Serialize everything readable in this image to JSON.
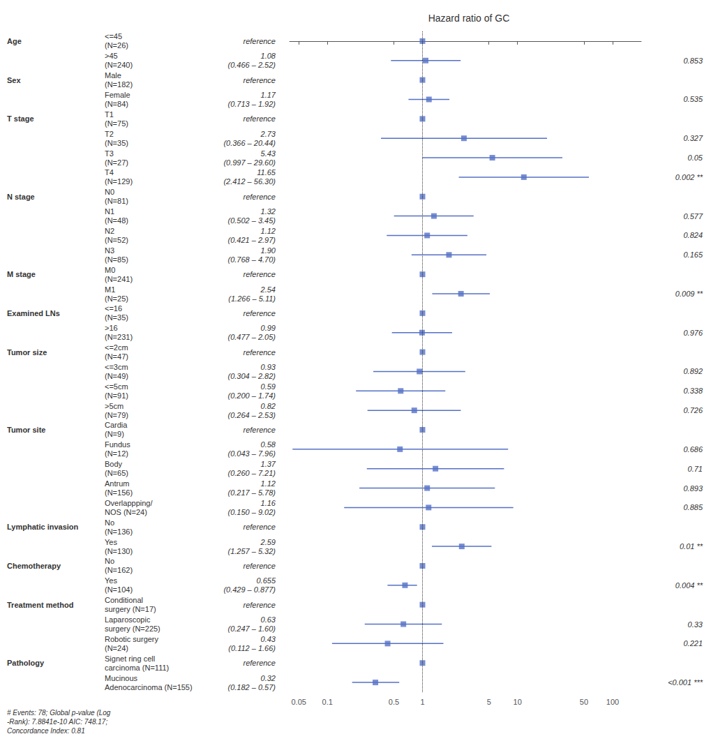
{
  "chart_data": {
    "type": "forest",
    "title": "Hazard ratio of GC",
    "annotations": [
      "# Events: 78; Global p-value (Log\n-Rank): 7.8841e-10 AIC: 748.17;\nConcordance Index: 0.81"
    ],
    "groups": [
      "Age",
      null,
      "Sex",
      null,
      "T stage",
      null,
      null,
      null,
      "N stage",
      null,
      null,
      null,
      "M stage",
      null,
      "Examined LNs",
      null,
      "Tumor size",
      null,
      null,
      null,
      "Tumor site",
      null,
      null,
      null,
      null,
      "Lymphatic invasion",
      null,
      "Chemotherapy",
      null,
      "Treatment method",
      null,
      null,
      "Pathology",
      null
    ],
    "categories": [
      "<=45\n(N=26)",
      ">45\n(N=240)",
      "Male\n(N=182)",
      "Female\n(N=84)",
      "T1\n(N=75)",
      "T2\n(N=35)",
      "T3\n(N=27)",
      "T4\n(N=129)",
      "N0\n(N=81)",
      "N1\n(N=48)",
      "N2\n(N=52)",
      "N3\n(N=85)",
      "M0\n(N=241)",
      "M1\n(N=25)",
      "<=16\n(N=35)",
      ">16\n(N=231)",
      "<=2cm\n(N=47)",
      "<=3cm\n(N=49)",
      "<=5cm\n(N=91)",
      ">5cm\n(N=79)",
      "Cardia\n(N=9)",
      "Fundus\n(N=12)",
      "Body\n(N=65)",
      "Antrum\n(N=156)",
      "Overlappping/\nNOS (N=24)",
      "No\n(N=136)",
      "Yes\n(N=130)",
      "No\n(N=162)",
      "Yes\n(N=104)",
      "Conditional\nsurgery (N=17)",
      "Laparoscopic\nsurgery (N=225)",
      "Robotic surgery\n(N=24)",
      "Signet ring cell\ncarcinoma (N=111)",
      "Mucinous\nAdenocarcinoma (N=155)"
    ],
    "values": [
      null,
      1.08,
      null,
      1.17,
      null,
      2.73,
      5.43,
      11.65,
      null,
      1.32,
      1.12,
      1.9,
      null,
      2.54,
      null,
      0.99,
      null,
      0.93,
      0.59,
      0.82,
      null,
      0.58,
      1.37,
      1.12,
      1.16,
      null,
      2.59,
      null,
      0.655,
      null,
      0.63,
      0.43,
      null,
      0.32
    ],
    "ci_lo": [
      null,
      0.466,
      null,
      0.713,
      null,
      0.366,
      0.997,
      2.412,
      null,
      0.502,
      0.421,
      0.768,
      null,
      1.266,
      null,
      0.477,
      null,
      0.304,
      0.2,
      0.264,
      null,
      0.043,
      0.26,
      0.217,
      0.15,
      null,
      1.257,
      null,
      0.429,
      null,
      0.247,
      0.112,
      null,
      0.182
    ],
    "ci_hi": [
      null,
      2.52,
      null,
      1.92,
      null,
      20.44,
      29.6,
      56.3,
      null,
      3.45,
      2.97,
      4.7,
      null,
      5.11,
      null,
      2.05,
      null,
      2.82,
      1.74,
      2.53,
      null,
      7.96,
      7.21,
      5.78,
      9.02,
      null,
      5.32,
      null,
      0.877,
      null,
      1.6,
      1.66,
      null,
      0.57
    ],
    "ci_labels": [
      "reference",
      "1.08\n(0.466 – 2.52)",
      "reference",
      "1.17\n(0.713 – 1.92)",
      "reference",
      "2.73\n(0.366 – 20.44)",
      "5.43\n(0.997 – 29.60)",
      "11.65\n(2.412 – 56.30)",
      "reference",
      "1.32\n(0.502 – 3.45)",
      "1.12\n(0.421 – 2.97)",
      "1.90\n(0.768 – 4.70)",
      "reference",
      "2.54\n(1.266 – 5.11)",
      "reference",
      "0.99\n(0.477 – 2.05)",
      "reference",
      "0.93\n(0.304 – 2.82)",
      "0.59\n(0.200 – 1.74)",
      "0.82\n(0.264 – 2.53)",
      "reference",
      "0.58\n(0.043 – 7.96)",
      "1.37\n(0.260 – 7.21)",
      "1.12\n(0.217 – 5.78)",
      "1.16\n(0.150 – 9.02)",
      "reference",
      "2.59\n(1.257 – 5.32)",
      "reference",
      "0.655\n(0.429 – 0.877)",
      "reference",
      "0.63\n(0.247 – 1.60)",
      "0.43\n(0.112 – 1.66)",
      "reference",
      "0.32\n(0.182 – 0.57)"
    ],
    "p_values": [
      null,
      "0.853",
      null,
      "0.535",
      null,
      "0.327",
      "0.05",
      "0.002 **",
      null,
      "0.577",
      "0.824",
      "0.165",
      null,
      "0.009 **",
      null,
      "0.976",
      null,
      "0.892",
      "0.338",
      "0.726",
      null,
      "0.686",
      "0.71",
      "0.893",
      "0.885",
      null,
      "0.01 **",
      null,
      "0.004 **",
      null,
      "0.33",
      "0.221",
      null,
      "<0.001 ***"
    ],
    "reference": 1,
    "xlim": [
      0.04,
      200
    ],
    "xticks": [
      0.05,
      0.1,
      0.5,
      1,
      5,
      10,
      50,
      100
    ],
    "log": "x",
    "marker": "square",
    "grid": false,
    "tick_labels": "x"
  }
}
